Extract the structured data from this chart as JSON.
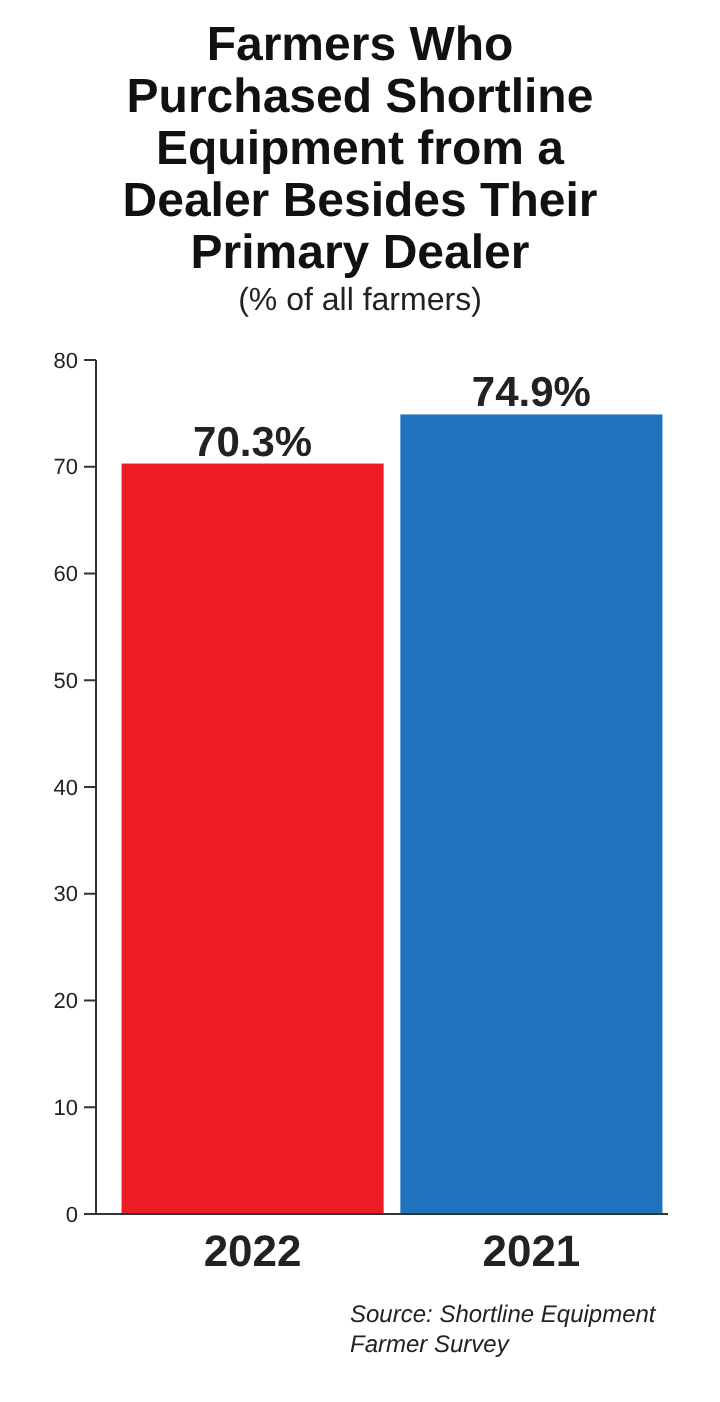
{
  "chart_data": {
    "type": "bar",
    "title": "Farmers Who Purchased Shortline Equipment from a Dealer Besides Their Primary Dealer",
    "subtitle": "(% of all farmers)",
    "categories": [
      "2022",
      "2021"
    ],
    "values": [
      70.3,
      74.9
    ],
    "colors": [
      "#ee1c25",
      "#1f72bd"
    ],
    "value_labels": [
      "70.3%",
      "74.9%"
    ],
    "ylim": [
      0,
      80
    ],
    "yticks": [
      0,
      10,
      20,
      30,
      40,
      50,
      60,
      70,
      80
    ],
    "grid": false,
    "annotations": [
      "Source: Shortline Equipment Farmer Survey"
    ]
  }
}
